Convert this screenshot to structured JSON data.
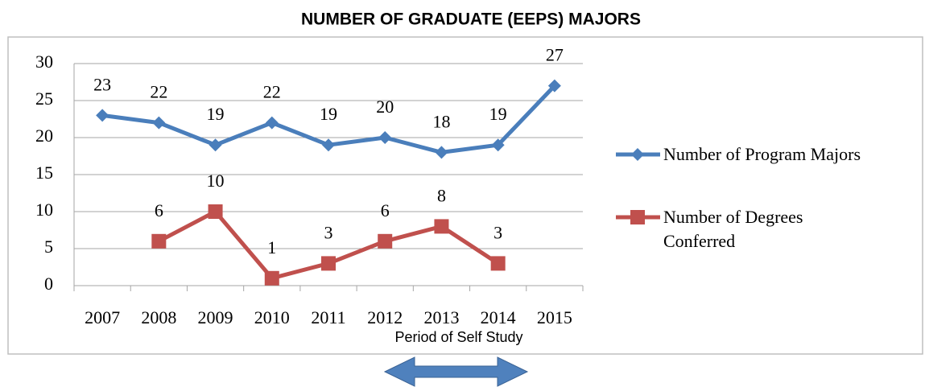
{
  "chart_data": {
    "type": "line",
    "title": "NUMBER OF GRADUATE (EEPS) MAJORS",
    "categories": [
      "2007",
      "2008",
      "2009",
      "2010",
      "2011",
      "2012",
      "2013",
      "2014",
      "2015"
    ],
    "series": [
      {
        "name": "Number of Program Majors",
        "color": "#4a7ebb",
        "marker": "diamond",
        "values": [
          23,
          22,
          19,
          22,
          19,
          20,
          18,
          19,
          27
        ]
      },
      {
        "name": "Number of Degrees Conferred",
        "color": "#c0504d",
        "marker": "square",
        "values": [
          null,
          6,
          10,
          1,
          3,
          6,
          8,
          3,
          null
        ]
      }
    ],
    "ylim": [
      0,
      30
    ],
    "yticks": [
      0,
      5,
      10,
      15,
      20,
      25,
      30
    ],
    "grid": true,
    "legend": "right",
    "annotation": "Period of Self Study"
  }
}
